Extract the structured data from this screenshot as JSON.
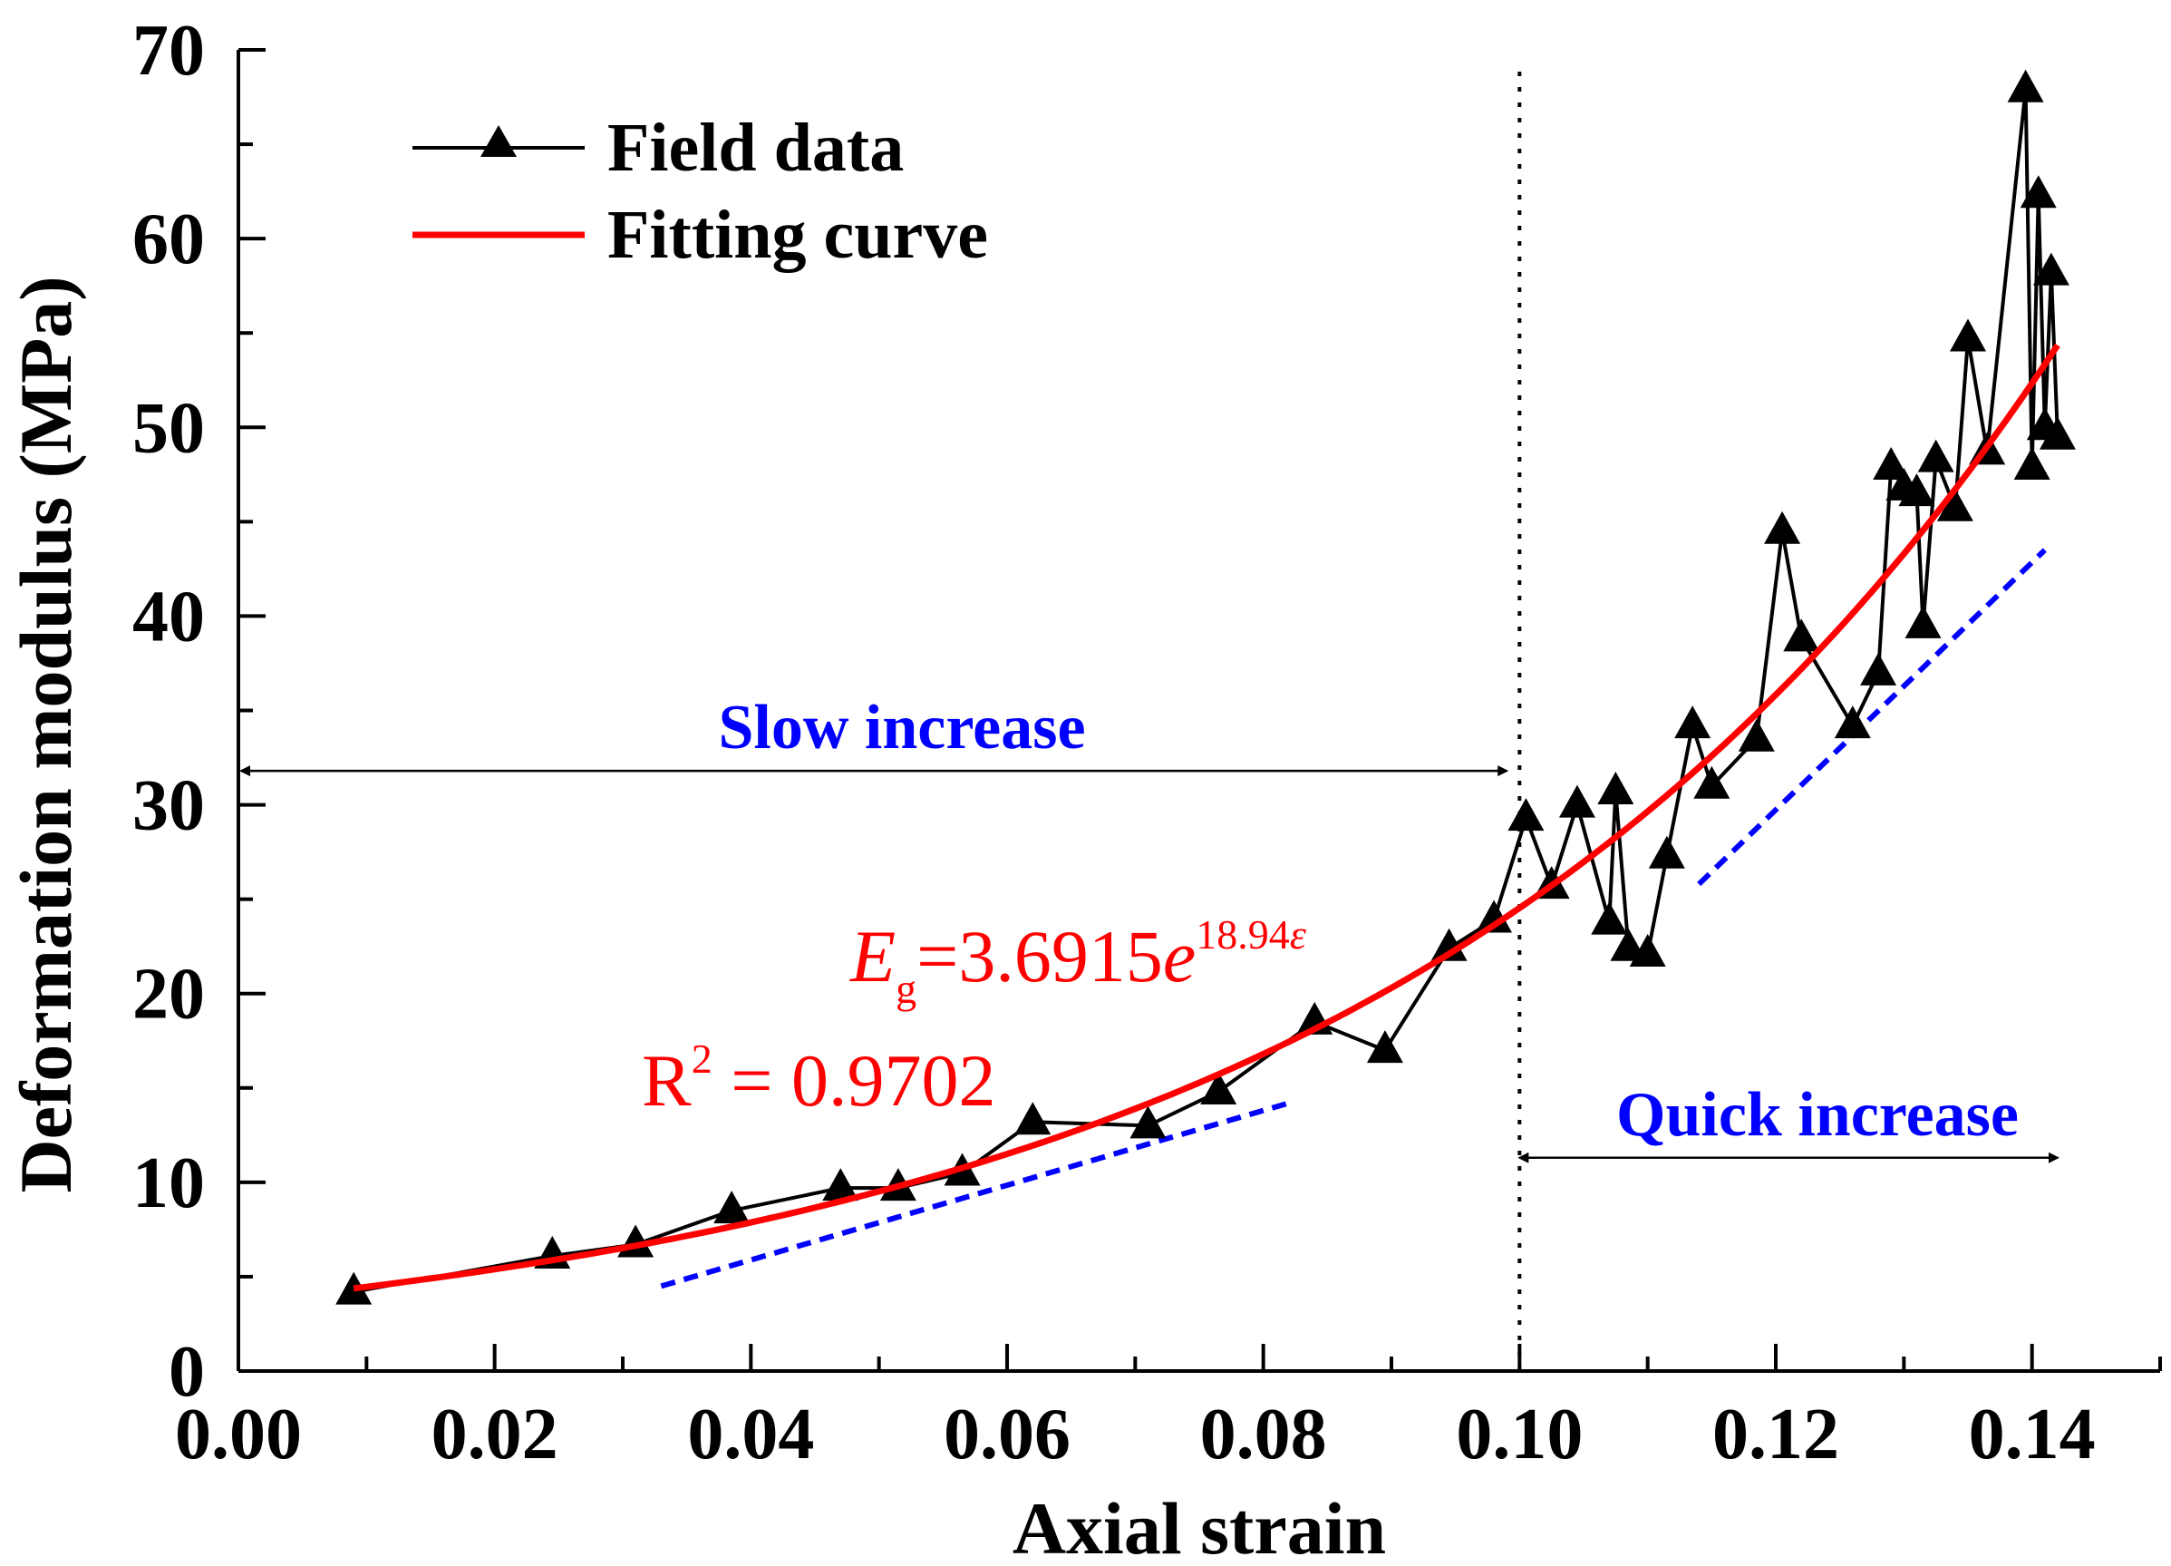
{
  "chart_data": {
    "type": "line",
    "xlabel": "Axial strain",
    "ylabel": "Deformation modulus (MPa)",
    "xlim": [
      0.0,
      0.15
    ],
    "ylim": [
      0,
      70
    ],
    "x_ticks": [
      "0.00",
      "0.02",
      "0.04",
      "0.06",
      "0.08",
      "0.10",
      "0.12",
      "0.14"
    ],
    "y_ticks": [
      "0",
      "10",
      "20",
      "30",
      "40",
      "50",
      "60",
      "70"
    ],
    "legend": {
      "placement": "top-left",
      "field_label": "Field data",
      "fit_label": "Fitting curve"
    },
    "colors": {
      "field": "#000000",
      "fit": "#ff0000",
      "trend": "#0000ff",
      "region_text": "#0000ff",
      "equation": "#ff0000"
    },
    "series": [
      {
        "name": "Field data",
        "marker": "triangle",
        "x": [
          0.009,
          0.0245,
          0.031,
          0.0385,
          0.047,
          0.0515,
          0.0565,
          0.062,
          0.071,
          0.0765,
          0.084,
          0.0895,
          0.0945,
          0.098,
          0.1005,
          0.1025,
          0.1045,
          0.107,
          0.1075,
          0.1085,
          0.11,
          0.1115,
          0.1135,
          0.115,
          0.1185,
          0.1205,
          0.122,
          0.126,
          0.128,
          0.129,
          0.13,
          0.131,
          0.1315,
          0.1325,
          0.134,
          0.135,
          0.1365,
          0.1395,
          0.14,
          0.1405,
          0.141,
          0.1415,
          0.142
        ],
        "values": [
          4.2,
          6.1,
          6.7,
          8.5,
          9.7,
          9.7,
          10.5,
          13.2,
          13.0,
          14.8,
          18.5,
          17.0,
          22.4,
          23.9,
          29.3,
          25.7,
          30.0,
          23.8,
          30.7,
          22.4,
          22.1,
          27.3,
          34.2,
          31.0,
          33.5,
          44.5,
          38.8,
          34.2,
          37.0,
          47.9,
          46.8,
          46.5,
          39.5,
          48.3,
          45.7,
          54.7,
          48.7,
          67.9,
          47.9,
          62.3,
          50.0,
          58.2,
          49.5
        ]
      },
      {
        "name": "Fitting curve",
        "type": "exponential",
        "a": 3.6915,
        "b": 18.94,
        "x_range": [
          0.009,
          0.142
        ]
      }
    ],
    "trend_lines": [
      {
        "x": [
          0.033,
          0.082
        ],
        "values": [
          4.5,
          14.2
        ]
      },
      {
        "x": [
          0.114,
          0.141
        ],
        "values": [
          25.8,
          43.5
        ]
      }
    ],
    "vertical_line": {
      "x": 0.1
    },
    "annotations": {
      "slow_label": "Slow increase",
      "slow_arrow": {
        "x": [
          0.0,
          0.099
        ],
        "y": 31.8
      },
      "quick_label": "Quick increase",
      "quick_arrow": {
        "x": [
          0.1,
          0.142
        ],
        "y": 11.3
      },
      "eq_lhs": "E",
      "eq_sub": "g",
      "eq_rhs": "=3.6915",
      "eq_e": "e",
      "eq_exp_num": "18.94",
      "eq_exp_var": "ε",
      "r2_label": "R",
      "r2_sup": "2",
      "r2_value": " = 0.9702"
    }
  }
}
